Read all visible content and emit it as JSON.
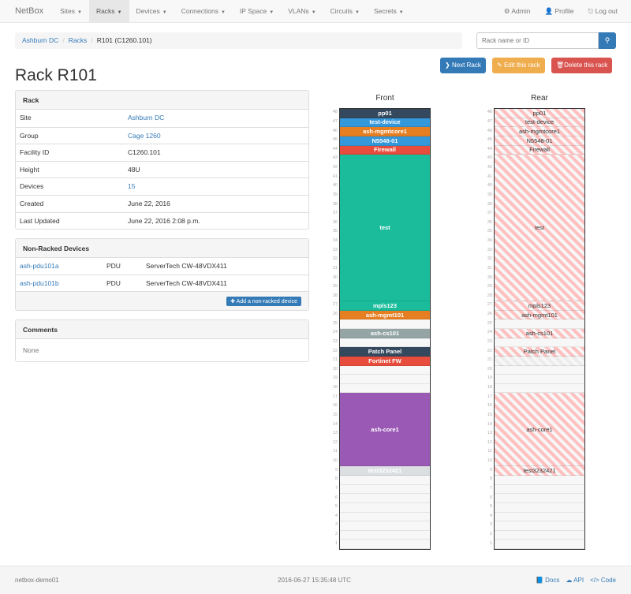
{
  "navbar": {
    "brand": "NetBox",
    "items": [
      "Sites",
      "Racks",
      "Devices",
      "Connections",
      "IP Space",
      "VLANs",
      "Circuits",
      "Secrets"
    ],
    "active": "Racks",
    "right": [
      {
        "icon": "gear-icon",
        "label": "Admin"
      },
      {
        "icon": "user-icon",
        "label": "Profile"
      },
      {
        "icon": "logout-icon",
        "label": "Log out"
      }
    ]
  },
  "breadcrumb": [
    "Ashburn DC",
    "Racks",
    "R101 (C1260.101)"
  ],
  "search": {
    "placeholder": "Rack name or ID"
  },
  "buttons": {
    "next": "Next Rack",
    "edit": "Edit this rack",
    "delete": "Delete this rack"
  },
  "title": "Rack R101",
  "rack_panel": {
    "heading": "Rack",
    "rows": [
      {
        "k": "Site",
        "v": "Ashburn DC",
        "link": true
      },
      {
        "k": "Group",
        "v": "Cage 1260",
        "link": true
      },
      {
        "k": "Facility ID",
        "v": "C1260.101"
      },
      {
        "k": "Height",
        "v": "48U"
      },
      {
        "k": "Devices",
        "v": "15",
        "link": true
      },
      {
        "k": "Created",
        "v": "June 22, 2016"
      },
      {
        "k": "Last Updated",
        "v": "June 22, 2016 2:08 p.m."
      }
    ]
  },
  "nonracked": {
    "heading": "Non-Racked Devices",
    "rows": [
      {
        "name": "ash-pdu101a",
        "role": "PDU",
        "type": "ServerTech CW-48VDX411"
      },
      {
        "name": "ash-pdu101b",
        "role": "PDU",
        "type": "ServerTech CW-48VDX411"
      }
    ],
    "add_label": "Add a non-racked device"
  },
  "comments": {
    "heading": "Comments",
    "body": "None"
  },
  "rack": {
    "units": 48,
    "front_label": "Front",
    "rear_label": "Rear",
    "front": [
      {
        "name": "pp01",
        "u": 48,
        "h": 1,
        "color": "#34495e"
      },
      {
        "name": "test-device",
        "u": 47,
        "h": 1,
        "color": "#3498db"
      },
      {
        "name": "ash-mgmtcore1",
        "u": 46,
        "h": 1,
        "color": "#e67e22"
      },
      {
        "name": "N5548-01",
        "u": 45,
        "h": 1,
        "color": "#3498db"
      },
      {
        "name": "Firewall",
        "u": 44,
        "h": 1,
        "color": "#e74c3c"
      },
      {
        "name": "test",
        "u": 28,
        "h": 16,
        "color": "#1abc9c"
      },
      {
        "name": "mpls123",
        "u": 27,
        "h": 1,
        "color": "#1abc9c"
      },
      {
        "name": "ash-mgmt101",
        "u": 26,
        "h": 1,
        "color": "#e67e22"
      },
      {
        "name": "ash-cs101",
        "u": 24,
        "h": 1,
        "color": "#95a5a6"
      },
      {
        "name": "Patch Panel",
        "u": 22,
        "h": 1,
        "color": "#34495e"
      },
      {
        "name": "Fortinet FW",
        "u": 21,
        "h": 1,
        "color": "#e74c3c"
      },
      {
        "name": "ash-core1",
        "u": 10,
        "h": 8,
        "color": "#9b59b6"
      },
      {
        "name": "test3232421",
        "u": 9,
        "h": 1,
        "color": "#dcdfe2"
      }
    ],
    "rear": [
      {
        "name": "pp01",
        "u": 48,
        "h": 1
      },
      {
        "name": "test-device",
        "u": 47,
        "h": 1
      },
      {
        "name": "ash-mgmtcore1",
        "u": 46,
        "h": 1
      },
      {
        "name": "N5548-01",
        "u": 45,
        "h": 1
      },
      {
        "name": "Firewall",
        "u": 44,
        "h": 1
      },
      {
        "name": "test",
        "u": 28,
        "h": 16
      },
      {
        "name": "mpls123",
        "u": 27,
        "h": 1
      },
      {
        "name": "ash-mgmt101",
        "u": 26,
        "h": 1
      },
      {
        "name": "ash-cs101",
        "u": 24,
        "h": 1
      },
      {
        "name": "Patch Panel",
        "u": 22,
        "h": 1
      },
      {
        "name": "",
        "u": 21,
        "h": 1,
        "faint": true
      },
      {
        "name": "ash-core1",
        "u": 10,
        "h": 8
      },
      {
        "name": "test3232421",
        "u": 9,
        "h": 1
      }
    ]
  },
  "footer": {
    "host": "netbox-demo01",
    "time": "2016-06-27 15:35:48 UTC",
    "links": [
      {
        "icon": "book-icon",
        "label": "Docs"
      },
      {
        "icon": "cloud-icon",
        "label": "API"
      },
      {
        "icon": "code-icon",
        "label": "Code"
      }
    ]
  }
}
